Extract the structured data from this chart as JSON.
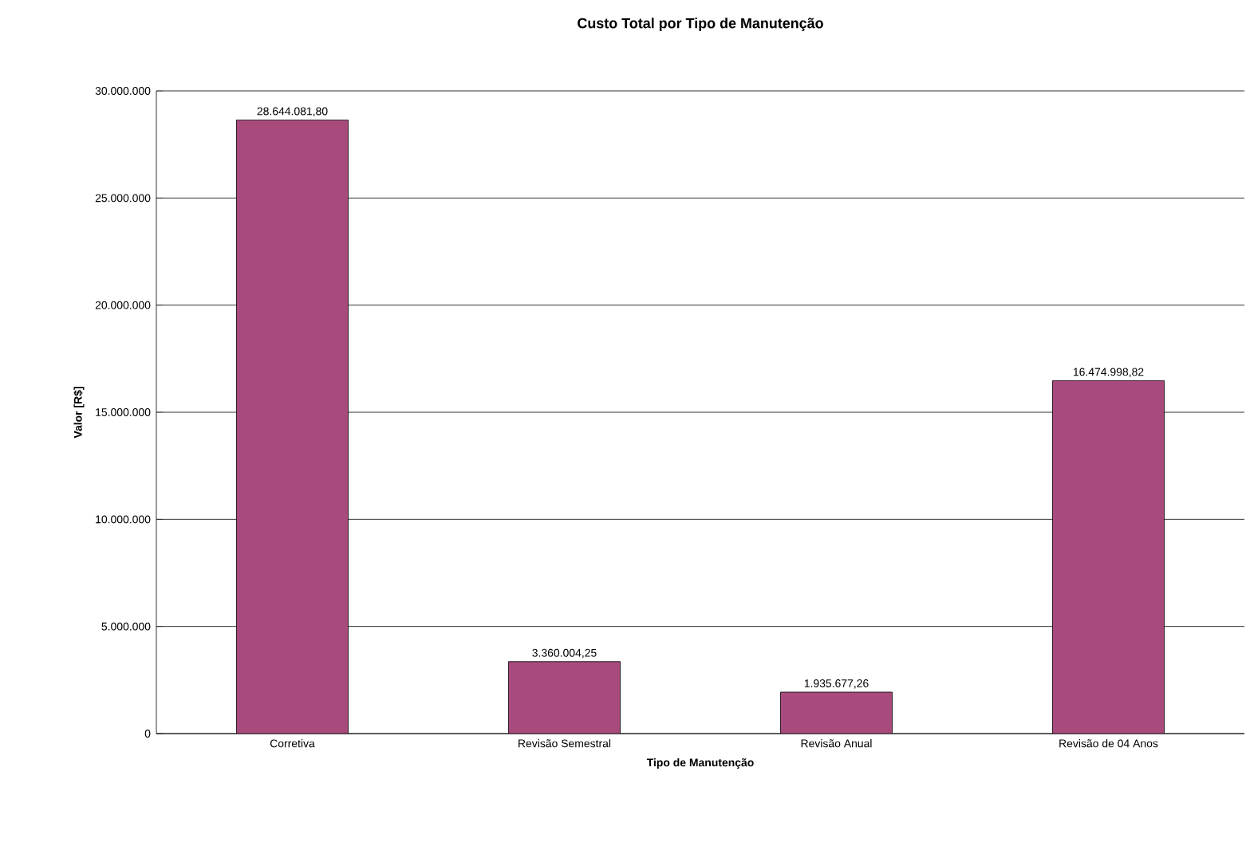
{
  "chart_data": {
    "type": "bar",
    "title": "Custo Total por Tipo de Manutenção",
    "xlabel": "Tipo de Manutenção",
    "ylabel": "Valor [R$]",
    "categories": [
      "Corretiva",
      "Revisão Semestral",
      "Revisão Anual",
      "Revisão de 04 Anos"
    ],
    "values": [
      28644081.8,
      3360004.25,
      1935677.26,
      16474998.82
    ],
    "value_labels": [
      "28.644.081,80",
      "3.360.004,25",
      "1.935.677,26",
      "16.474.998,82"
    ],
    "color": "#a84a7c",
    "ylim": [
      0,
      30000000
    ],
    "yticks": [
      {
        "value": 0,
        "label": "0"
      },
      {
        "value": 5000000,
        "label": "5.000.000"
      },
      {
        "value": 10000000,
        "label": "10.000.000"
      },
      {
        "value": 15000000,
        "label": "15.000.000"
      },
      {
        "value": 20000000,
        "label": "20.000.000"
      },
      {
        "value": 25000000,
        "label": "25.000.000"
      },
      {
        "value": 30000000,
        "label": "30.000.000"
      }
    ],
    "grid": "y"
  }
}
